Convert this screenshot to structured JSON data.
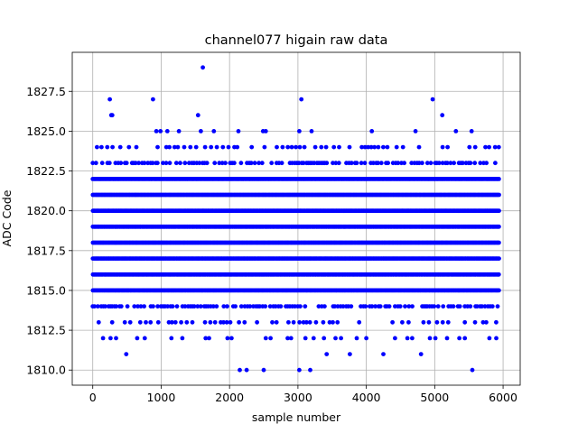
{
  "chart_data": {
    "type": "scatter",
    "title": "channel077 higain raw data",
    "xlabel": "sample number",
    "ylabel": "ADC Code",
    "xlim": [
      -300,
      6250
    ],
    "ylim": [
      1809.05,
      1829.95
    ],
    "xticks": [
      0,
      1000,
      2000,
      3000,
      4000,
      5000,
      6000
    ],
    "yticks": [
      1810.0,
      1812.5,
      1815.0,
      1817.5,
      1820.0,
      1822.5,
      1825.0,
      1827.5
    ],
    "ytick_labels": [
      "1810.0",
      "1812.5",
      "1815.0",
      "1817.5",
      "1820.0",
      "1822.5",
      "1825.0",
      "1827.5"
    ],
    "grid": true,
    "marker_color": "#0000ff",
    "series": [
      {
        "name": "",
        "dense_levels": [
          1815,
          1816,
          1817,
          1818,
          1819,
          1820,
          1821,
          1822
        ],
        "dense_x_range": [
          0,
          5940
        ],
        "medium_levels": [
          1814,
          1823
        ],
        "sparse_levels": [
          1813,
          1824
        ],
        "outliers": [
          {
            "x": 250,
            "y": 1827
          },
          {
            "x": 270,
            "y": 1826
          },
          {
            "x": 285,
            "y": 1826
          },
          {
            "x": 880,
            "y": 1827
          },
          {
            "x": 930,
            "y": 1825
          },
          {
            "x": 990,
            "y": 1825
          },
          {
            "x": 1090,
            "y": 1825
          },
          {
            "x": 1260,
            "y": 1825
          },
          {
            "x": 1540,
            "y": 1826
          },
          {
            "x": 1580,
            "y": 1825
          },
          {
            "x": 1610,
            "y": 1829
          },
          {
            "x": 1770,
            "y": 1825
          },
          {
            "x": 2130,
            "y": 1825
          },
          {
            "x": 2490,
            "y": 1825
          },
          {
            "x": 2530,
            "y": 1825
          },
          {
            "x": 3020,
            "y": 1825
          },
          {
            "x": 3050,
            "y": 1827
          },
          {
            "x": 3200,
            "y": 1825
          },
          {
            "x": 4080,
            "y": 1825
          },
          {
            "x": 4720,
            "y": 1825
          },
          {
            "x": 4970,
            "y": 1827
          },
          {
            "x": 5110,
            "y": 1826
          },
          {
            "x": 5310,
            "y": 1825
          },
          {
            "x": 5540,
            "y": 1825
          },
          {
            "x": 150,
            "y": 1812
          },
          {
            "x": 260,
            "y": 1812
          },
          {
            "x": 340,
            "y": 1812
          },
          {
            "x": 490,
            "y": 1811
          },
          {
            "x": 650,
            "y": 1812
          },
          {
            "x": 760,
            "y": 1812
          },
          {
            "x": 1150,
            "y": 1812
          },
          {
            "x": 1310,
            "y": 1812
          },
          {
            "x": 1650,
            "y": 1812
          },
          {
            "x": 1700,
            "y": 1812
          },
          {
            "x": 1970,
            "y": 1812
          },
          {
            "x": 2030,
            "y": 1812
          },
          {
            "x": 2150,
            "y": 1810
          },
          {
            "x": 2250,
            "y": 1810
          },
          {
            "x": 2500,
            "y": 1810
          },
          {
            "x": 2530,
            "y": 1812
          },
          {
            "x": 2600,
            "y": 1812
          },
          {
            "x": 2850,
            "y": 1812
          },
          {
            "x": 2900,
            "y": 1812
          },
          {
            "x": 3020,
            "y": 1810
          },
          {
            "x": 3110,
            "y": 1812
          },
          {
            "x": 3180,
            "y": 1810
          },
          {
            "x": 3230,
            "y": 1812
          },
          {
            "x": 3380,
            "y": 1812
          },
          {
            "x": 3420,
            "y": 1811
          },
          {
            "x": 3550,
            "y": 1812
          },
          {
            "x": 3630,
            "y": 1812
          },
          {
            "x": 3760,
            "y": 1811
          },
          {
            "x": 3860,
            "y": 1812
          },
          {
            "x": 4000,
            "y": 1812
          },
          {
            "x": 4250,
            "y": 1811
          },
          {
            "x": 4420,
            "y": 1812
          },
          {
            "x": 4600,
            "y": 1812
          },
          {
            "x": 4670,
            "y": 1812
          },
          {
            "x": 4800,
            "y": 1811
          },
          {
            "x": 4930,
            "y": 1812
          },
          {
            "x": 5010,
            "y": 1812
          },
          {
            "x": 5180,
            "y": 1812
          },
          {
            "x": 5360,
            "y": 1812
          },
          {
            "x": 5440,
            "y": 1812
          },
          {
            "x": 5550,
            "y": 1810
          },
          {
            "x": 5800,
            "y": 1812
          },
          {
            "x": 5900,
            "y": 1812
          }
        ]
      }
    ]
  }
}
